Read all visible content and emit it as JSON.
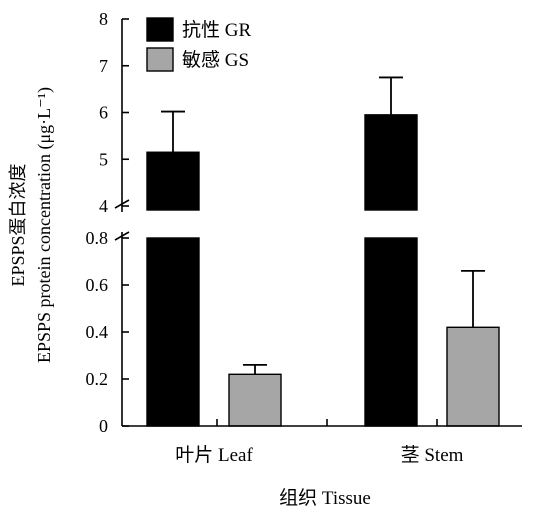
{
  "chart_data": {
    "type": "bar",
    "xlabel": "组织 Tissue",
    "ylabel_lines": [
      "EPSPS蛋白浓度",
      "EPSPS protein concentration (μg·L⁻¹)"
    ],
    "axis_break": true,
    "y_lower_ticks": [
      "0",
      "0.2",
      "0.4",
      "0.6",
      "0.8"
    ],
    "y_upper_ticks": [
      "4",
      "5",
      "6",
      "7",
      "8"
    ],
    "ylim_lower": [
      0,
      0.8
    ],
    "ylim_upper": [
      4,
      8
    ],
    "legend_position": "top-left",
    "categories": [
      "叶片 Leaf",
      "茎 Stem"
    ],
    "series": [
      {
        "name": "抗性 GR",
        "color": "#000000",
        "values": [
          5.15,
          5.95
        ],
        "errors": [
          0.87,
          0.8
        ]
      },
      {
        "name": "敏感 GS",
        "color": "#a6a6a6",
        "values": [
          0.22,
          0.42
        ],
        "errors": [
          0.04,
          0.24
        ]
      }
    ]
  }
}
